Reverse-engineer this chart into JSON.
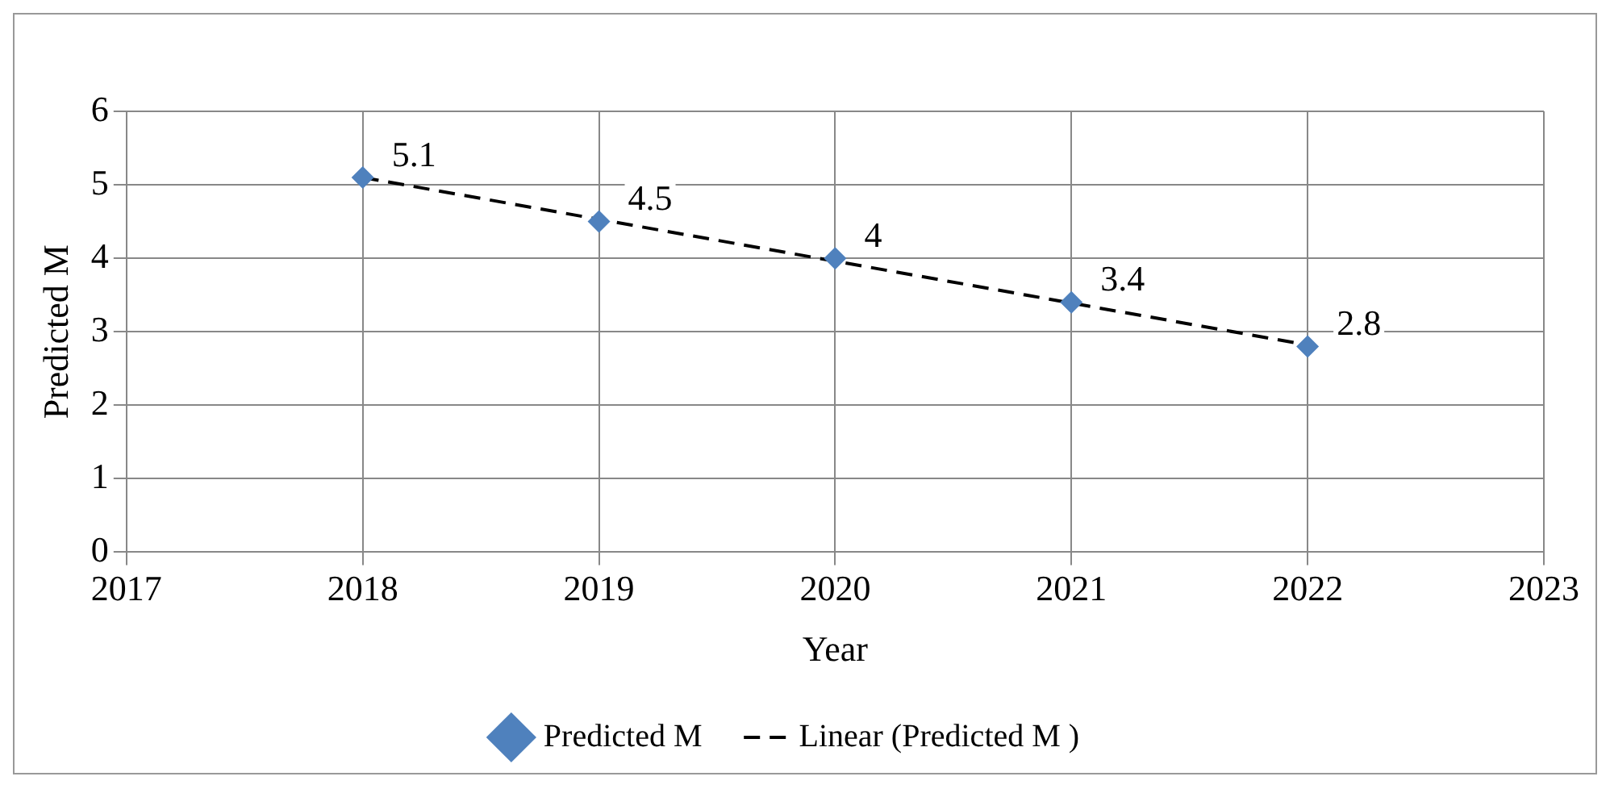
{
  "chart_data": {
    "type": "scatter",
    "xlabel": "Year",
    "ylabel": "Predicted M",
    "x": [
      2018,
      2019,
      2020,
      2021,
      2022
    ],
    "series": [
      {
        "name": "Predicted M",
        "color": "#4f81bd",
        "values": [
          5.1,
          4.5,
          4,
          3.4,
          2.8
        ],
        "marker": "diamond",
        "value_labels": [
          "5.1",
          "4.5",
          "4",
          "3.4",
          "2.8"
        ]
      },
      {
        "name": "Linear (Predicted M )",
        "type": "line",
        "color": "#000000",
        "x": [
          2018,
          2022
        ],
        "values": [
          5.1,
          2.82
        ],
        "marker": "none",
        "line_style": "dashed"
      }
    ],
    "xlim": [
      2017,
      2023
    ],
    "xticks": [
      2017,
      2018,
      2019,
      2020,
      2021,
      2022,
      2023
    ],
    "ylim": [
      0,
      6
    ],
    "yticks": [
      0,
      1,
      2,
      3,
      4,
      5,
      6
    ],
    "grid": true,
    "legend": "bottom"
  }
}
